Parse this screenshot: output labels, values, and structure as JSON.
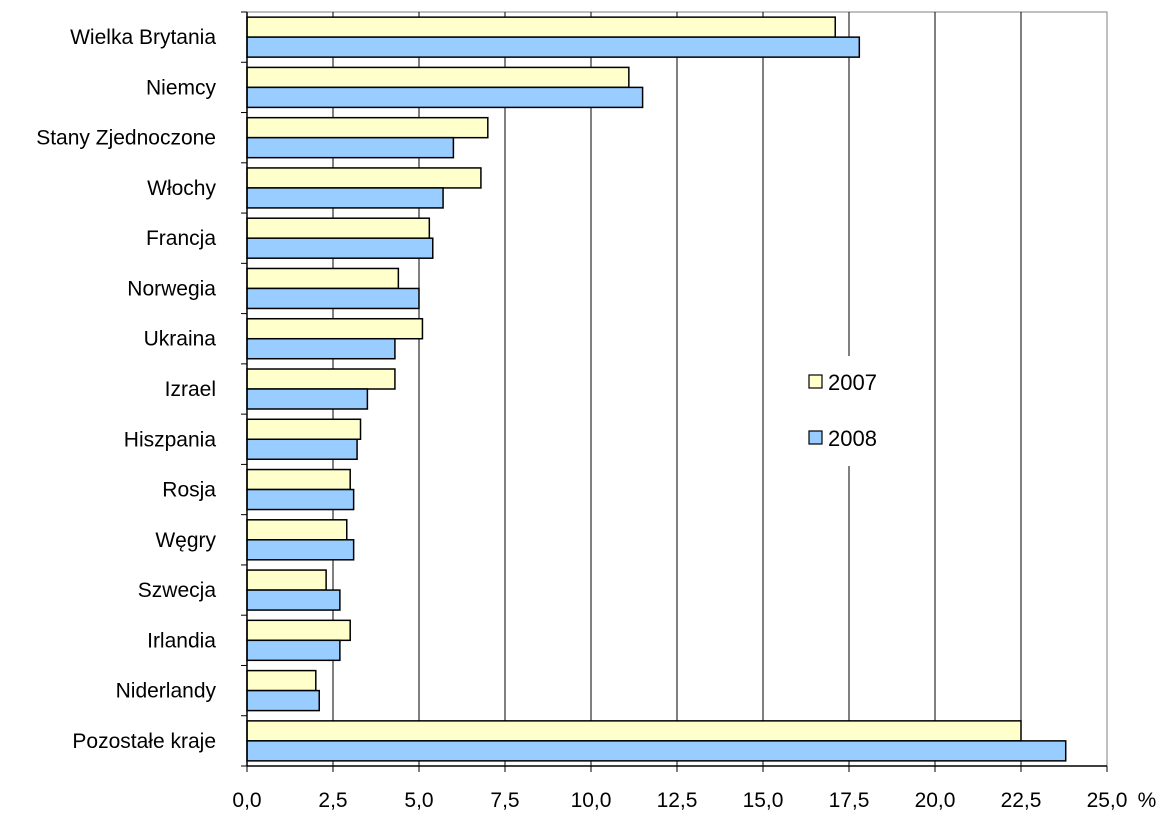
{
  "chart_data": {
    "type": "bar",
    "orientation": "horizontal",
    "categories": [
      "Wielka Brytania",
      "Niemcy",
      "Stany Zjednoczone",
      "Włochy",
      "Francja",
      "Norwegia",
      "Ukraina",
      "Izrael",
      "Hiszpania",
      "Rosja",
      "Węgry",
      "Szwecja",
      "Irlandia",
      "Niderlandy",
      "Pozostałe kraje"
    ],
    "series": [
      {
        "name": "2007",
        "color": "#ffffcc",
        "values": [
          17.1,
          11.1,
          7.0,
          6.8,
          5.3,
          4.4,
          5.1,
          4.3,
          3.3,
          3.0,
          2.9,
          2.3,
          3.0,
          2.0,
          22.5
        ]
      },
      {
        "name": "2008",
        "color": "#99ccff",
        "values": [
          17.8,
          11.5,
          6.0,
          5.7,
          5.4,
          5.0,
          4.3,
          3.5,
          3.2,
          3.1,
          3.1,
          2.7,
          2.7,
          2.1,
          23.8
        ]
      }
    ],
    "xlim": [
      0,
      25
    ],
    "xticks": [
      "0,0",
      "2,5",
      "5,0",
      "7,5",
      "10,0",
      "12,5",
      "15,0",
      "17,5",
      "20,0",
      "22,5",
      "25,0"
    ],
    "xunit": "%",
    "title": "",
    "xlabel": "",
    "ylabel": "",
    "grid": "vertical",
    "legend_position": "right"
  }
}
